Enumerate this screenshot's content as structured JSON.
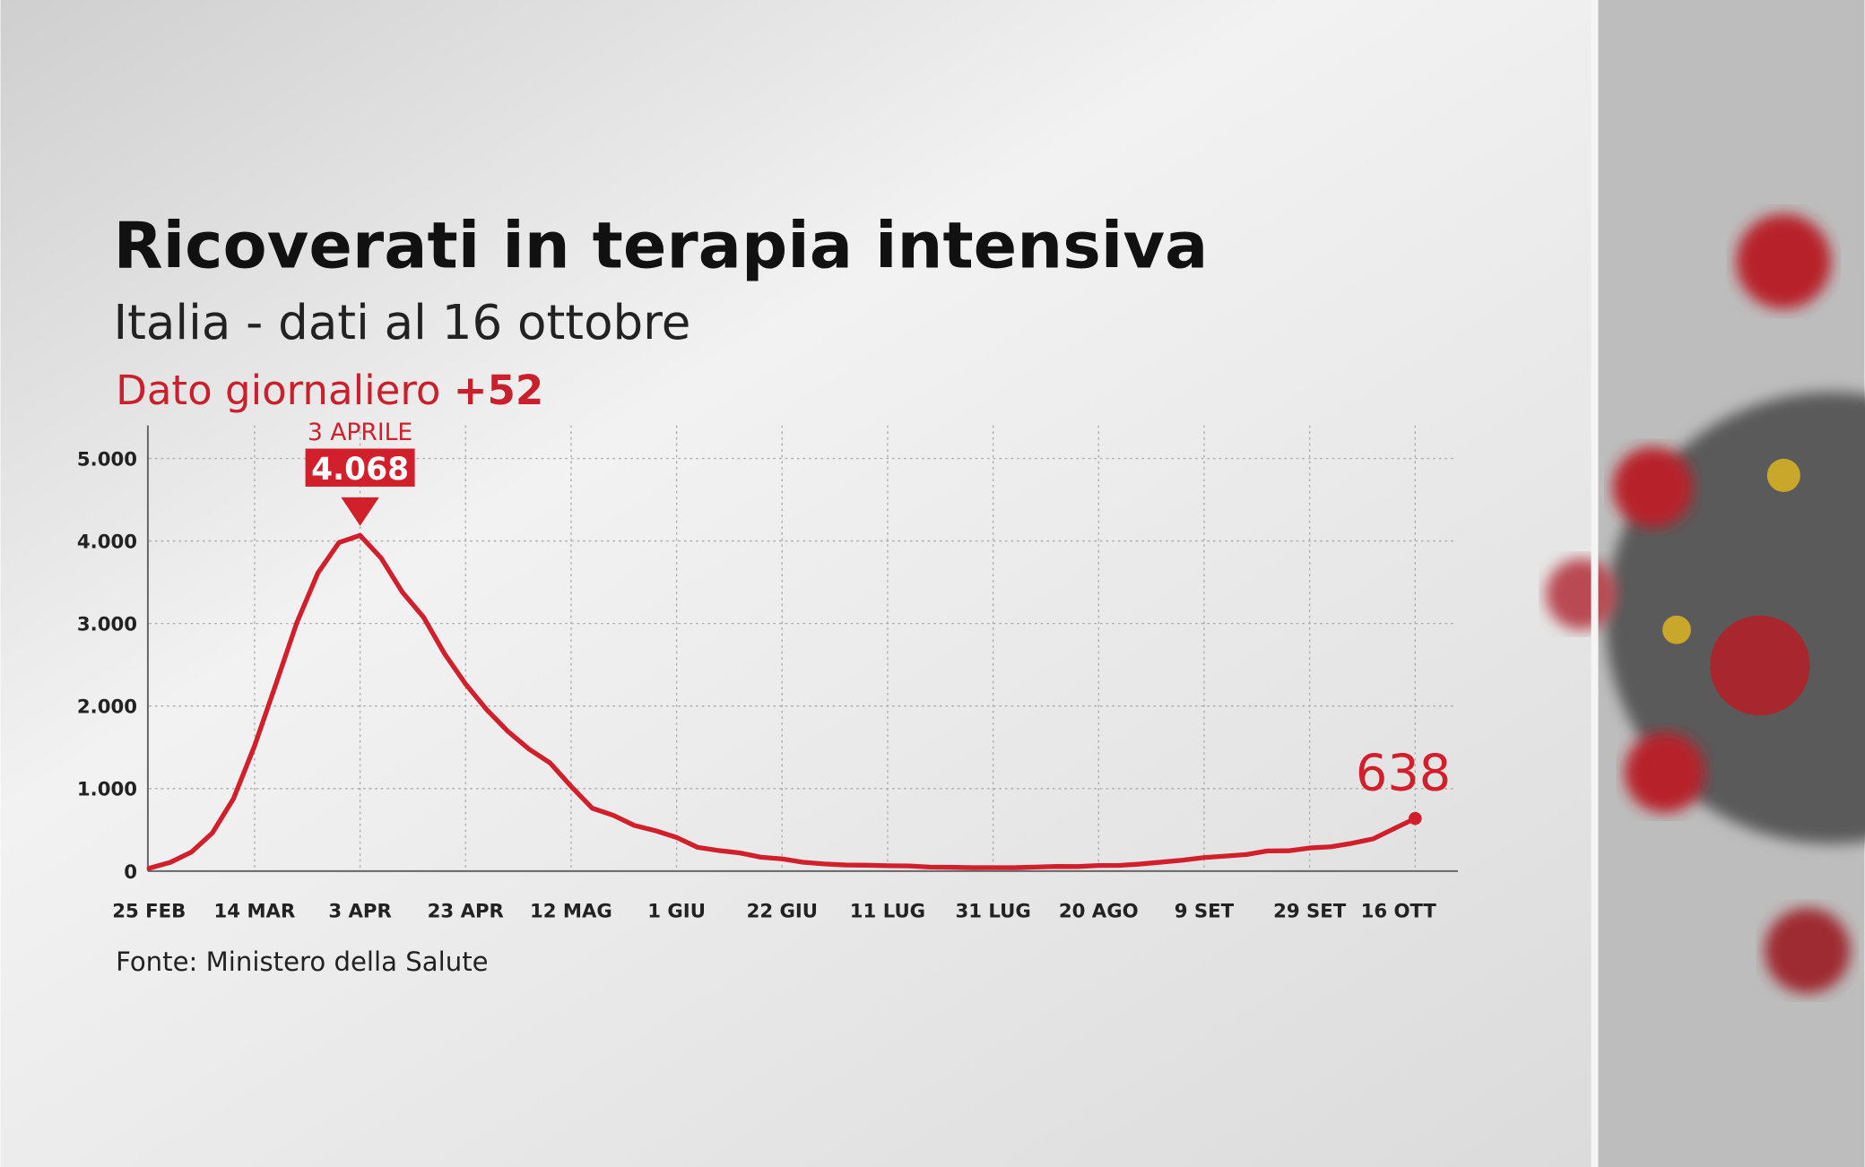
{
  "chart_data": {
    "type": "line",
    "title": "Ricoverati in terapia intensiva",
    "subtitle": "Italia - dati al 16 ottobre",
    "daily_label": "Dato giornaliero",
    "daily_change": "+52",
    "source": "Fonte: Ministero della Salute",
    "peak_label": "3 APRILE",
    "categories": [
      "25 FEB",
      null,
      null,
      null,
      null,
      "14 MAR",
      null,
      null,
      null,
      null,
      "3 APR",
      null,
      null,
      null,
      null,
      "23 APR",
      null,
      null,
      null,
      null,
      "12 MAG",
      null,
      null,
      null,
      null,
      "1 GIU",
      null,
      null,
      null,
      null,
      "22 GIU",
      null,
      null,
      null,
      null,
      "11 LUG",
      null,
      null,
      null,
      null,
      "31 LUG",
      null,
      null,
      null,
      null,
      "20 AGO",
      null,
      null,
      null,
      null,
      "9 SET",
      null,
      null,
      null,
      null,
      "29 SET",
      null,
      null,
      null,
      null,
      "16 OTT"
    ],
    "series": [
      {
        "name": "Ricoverati in terapia intensiva",
        "color": "#d11f2c",
        "values": [
          35,
          105,
          229,
          462,
          877,
          1518,
          2257,
          3009,
          3612,
          3981,
          4068,
          3792,
          3381,
          3079,
          2635,
          2267,
          1956,
          1694,
          1479,
          1311,
          1027,
          762,
          676,
          553,
          489,
          408,
          287,
          249,
          220,
          168,
          148,
          107,
          87,
          74,
          71,
          65,
          62,
          49,
          47,
          41,
          42,
          41,
          49,
          56,
          55,
          68,
          69,
          86,
          109,
          133,
          164,
          182,
          201,
          244,
          246,
          280,
          294,
          337,
          390,
          514,
          638
        ],
        "value_labels": [
          null,
          null,
          null,
          null,
          null,
          null,
          null,
          null,
          null,
          null,
          "4.068",
          null,
          null,
          null,
          null,
          null,
          null,
          null,
          null,
          null,
          null,
          null,
          null,
          null,
          null,
          null,
          null,
          null,
          null,
          null,
          null,
          null,
          null,
          null,
          null,
          null,
          null,
          null,
          null,
          null,
          null,
          null,
          null,
          null,
          null,
          null,
          null,
          null,
          null,
          null,
          null,
          null,
          null,
          null,
          null,
          null,
          null,
          null,
          null,
          null,
          null
        ]
      }
    ],
    "ylim": [
      0,
      5400
    ],
    "yticks": [
      0,
      {
        "value": 1000,
        "label": "1.000"
      },
      {
        "value": 2000,
        "label": "2.000"
      },
      {
        "value": 3000,
        "label": "3.000"
      },
      {
        "value": 4000,
        "label": "4.000"
      },
      {
        "value": 5000,
        "label": "5.000"
      }
    ],
    "grid": true
  }
}
